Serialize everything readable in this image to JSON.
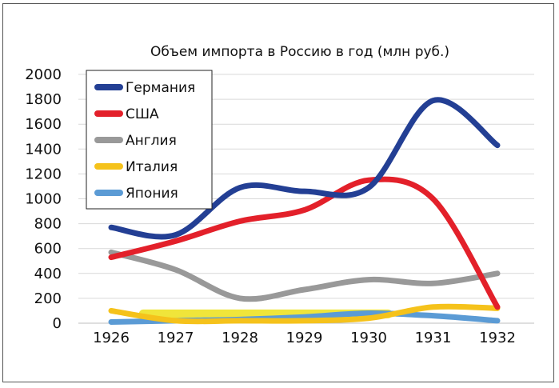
{
  "chart_data": {
    "type": "line",
    "title": "Объем импорта в Россию в год (млн руб.)",
    "xlabel": "",
    "ylabel": "",
    "x": [
      1926,
      1927,
      1928,
      1929,
      1930,
      1931,
      1932
    ],
    "ylim": [
      0,
      2000
    ],
    "yticks": [
      0,
      200,
      400,
      600,
      800,
      1000,
      1200,
      1400,
      1600,
      1800,
      2000
    ],
    "grid": true,
    "legend": "top-left",
    "series": [
      {
        "name": "Германия",
        "color": "#233f94",
        "values": [
          770,
          710,
          1090,
          1060,
          1090,
          1790,
          1430
        ]
      },
      {
        "name": "США",
        "color": "#e3202a",
        "values": [
          530,
          660,
          820,
          910,
          1150,
          1000,
          130
        ]
      },
      {
        "name": "Англия",
        "color": "#999999",
        "values": [
          570,
          430,
          200,
          270,
          350,
          320,
          400
        ]
      },
      {
        "name": "Италия",
        "color": "#f5c21b",
        "values": [
          100,
          20,
          20,
          20,
          40,
          130,
          120
        ]
      },
      {
        "name": "Япония",
        "color": "#5b9bd5",
        "values": [
          10,
          20,
          30,
          50,
          80,
          60,
          20
        ]
      }
    ],
    "band": {
      "color": "#f0e53a",
      "from": 1926.5,
      "to": 1930.3,
      "value": 75
    }
  }
}
